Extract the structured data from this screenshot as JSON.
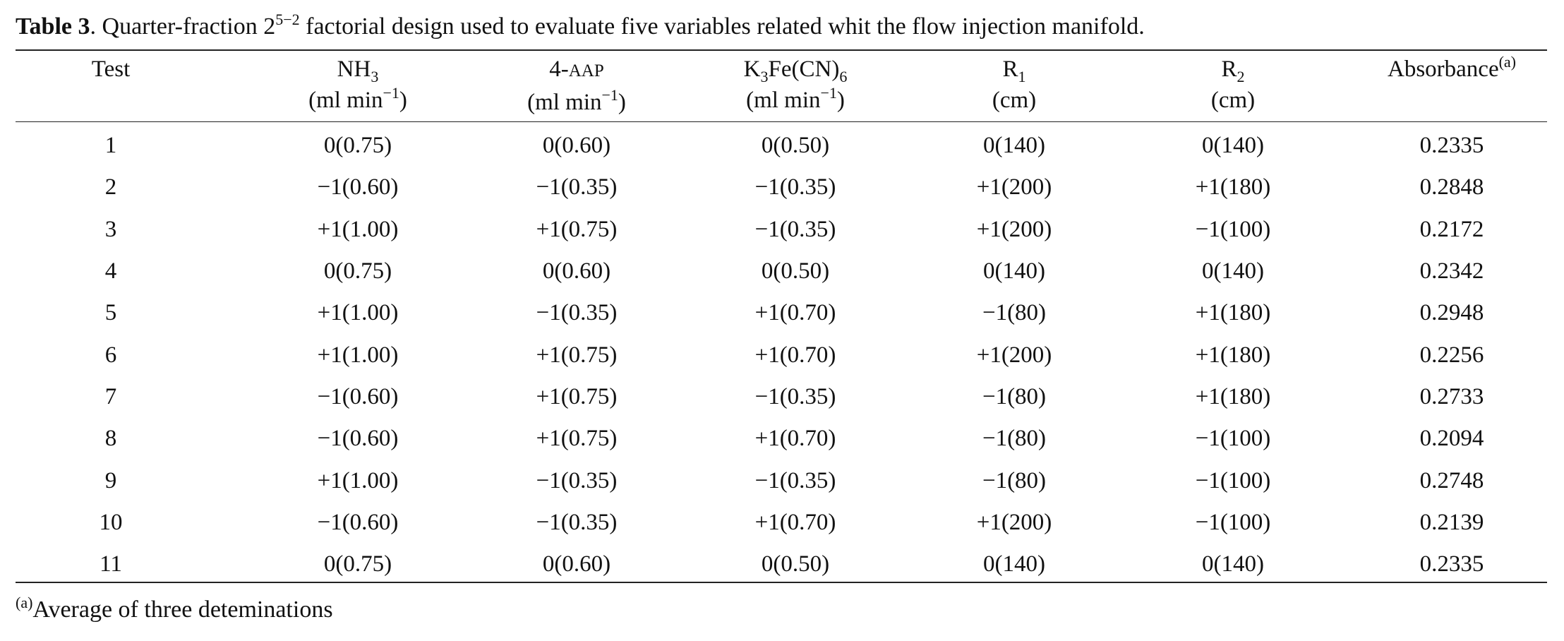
{
  "caption": {
    "label": "Table 3",
    "text_before": ". Quarter-fraction 2",
    "exponent": "5−2",
    "text_after": " factorial design used to evaluate five variables related whit the flow injection manifold."
  },
  "headers": [
    {
      "line1_main": "Test",
      "line1_sub": "",
      "line1_tail": "",
      "line1_sup": "",
      "line2_main": "",
      "line2_sup": "",
      "line2_tail": ""
    },
    {
      "line1_main": "NH",
      "line1_sub": "3",
      "line1_tail": "",
      "line1_sup": "",
      "line2_main": "(ml min",
      "line2_sup": "−1",
      "line2_tail": ")"
    },
    {
      "line1_main": "4-",
      "line1_sub": "",
      "line1_tail": "",
      "line1_sup": "",
      "line1_sc": "AAP",
      "line2_main": "(ml min",
      "line2_sup": "−1",
      "line2_tail": ")"
    },
    {
      "line1_main": "K",
      "line1_sub": "3",
      "line1_tail": "Fe(CN)",
      "line1_sub2": "6",
      "line1_sup": "",
      "line2_main": "(ml min",
      "line2_sup": "−1",
      "line2_tail": ")"
    },
    {
      "line1_main": "R",
      "line1_sub": "1",
      "line1_tail": "",
      "line1_sup": "",
      "line2_main": "(cm)",
      "line2_sup": "",
      "line2_tail": ""
    },
    {
      "line1_main": "R",
      "line1_sub": "2",
      "line1_tail": "",
      "line1_sup": "",
      "line2_main": "(cm)",
      "line2_sup": "",
      "line2_tail": ""
    },
    {
      "line1_main": "Absorbance",
      "line1_sub": "",
      "line1_tail": "",
      "line1_sup": "(a)",
      "line2_main": "",
      "line2_sup": "",
      "line2_tail": ""
    }
  ],
  "rows": [
    [
      "1",
      "0(0.75)",
      "0(0.60)",
      "0(0.50)",
      "0(140)",
      "0(140)",
      "0.2335"
    ],
    [
      "2",
      "−1(0.60)",
      "−1(0.35)",
      "−1(0.35)",
      "+1(200)",
      "+1(180)",
      "0.2848"
    ],
    [
      "3",
      "+1(1.00)",
      "+1(0.75)",
      "−1(0.35)",
      "+1(200)",
      "−1(100)",
      "0.2172"
    ],
    [
      "4",
      "0(0.75)",
      "0(0.60)",
      "0(0.50)",
      "0(140)",
      "0(140)",
      "0.2342"
    ],
    [
      "5",
      "+1(1.00)",
      "−1(0.35)",
      "+1(0.70)",
      "−1(80)",
      "+1(180)",
      "0.2948"
    ],
    [
      "6",
      "+1(1.00)",
      "+1(0.75)",
      "+1(0.70)",
      "+1(200)",
      "+1(180)",
      "0.2256"
    ],
    [
      "7",
      "−1(0.60)",
      "+1(0.75)",
      "−1(0.35)",
      "−1(80)",
      "+1(180)",
      "0.2733"
    ],
    [
      "8",
      "−1(0.60)",
      "+1(0.75)",
      "+1(0.70)",
      "−1(80)",
      "−1(100)",
      "0.2094"
    ],
    [
      "9",
      "+1(1.00)",
      "−1(0.35)",
      "−1(0.35)",
      "−1(80)",
      "−1(100)",
      "0.2748"
    ],
    [
      "10",
      "−1(0.60)",
      "−1(0.35)",
      "+1(0.70)",
      "+1(200)",
      "−1(100)",
      "0.2139"
    ],
    [
      "11",
      "0(0.75)",
      "0(0.60)",
      "0(0.50)",
      "0(140)",
      "0(140)",
      "0.2335"
    ]
  ],
  "footnote": {
    "marker": "(a)",
    "text": "Average of three deteminations"
  }
}
